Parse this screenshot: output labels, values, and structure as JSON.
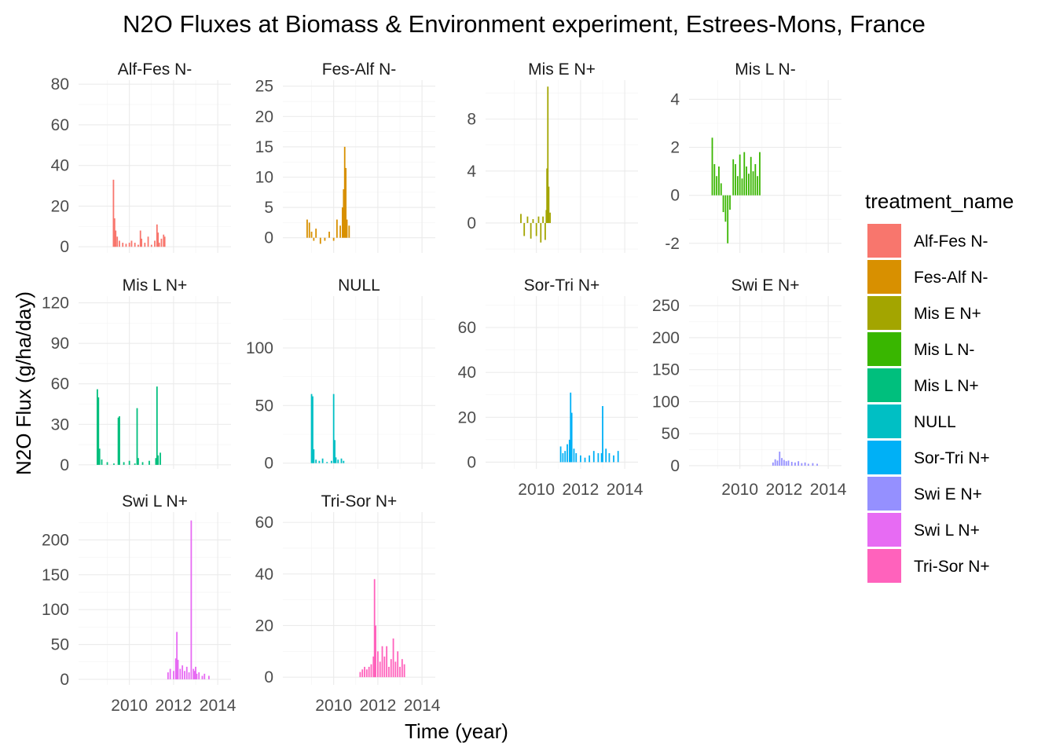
{
  "chart_data": {
    "type": "bar",
    "title": "N2O Fluxes at Biomass & Environment experiment, Estrees-Mons, France",
    "xlabel": "Time (year)",
    "ylabel": "N2O Flux (g/ha/day)",
    "legend_title": "treatment_name",
    "legend_position": "right",
    "xlim": [
      2007.7,
      2014.6
    ],
    "xticks": [
      2010,
      2012,
      2014
    ],
    "series": [
      {
        "name": "Alf-Fes N-",
        "color": "#F8766D",
        "ylim": [
          -3,
          82
        ],
        "yticks": [
          0,
          20,
          40,
          60,
          80
        ],
        "x": [
          2009.28,
          2009.33,
          2009.38,
          2009.45,
          2009.55,
          2009.7,
          2009.85,
          2010.0,
          2010.1,
          2010.25,
          2010.4,
          2010.5,
          2010.55,
          2010.7,
          2010.85,
          2011.0,
          2011.15,
          2011.25,
          2011.3,
          2011.35,
          2011.45,
          2011.55,
          2011.6
        ],
        "values": [
          33,
          14,
          8,
          5,
          3,
          2,
          1.5,
          2,
          3,
          2,
          1,
          8,
          4,
          2,
          5,
          1,
          3,
          11,
          7,
          2,
          4,
          6,
          5
        ]
      },
      {
        "name": "Fes-Alf N-",
        "color": "#D89000",
        "ylim": [
          -2.5,
          26
        ],
        "yticks": [
          0,
          5,
          10,
          15,
          20,
          25
        ],
        "x": [
          2008.8,
          2008.9,
          2009.0,
          2009.1,
          2009.2,
          2009.4,
          2009.6,
          2009.8,
          2010.0,
          2010.15,
          2010.3,
          2010.4,
          2010.45,
          2010.5,
          2010.55,
          2010.6,
          2010.7
        ],
        "values": [
          3,
          2.5,
          1,
          -0.5,
          1.5,
          -1,
          -0.5,
          1,
          -0.5,
          3,
          2,
          5,
          8,
          15,
          11.5,
          3,
          2
        ]
      },
      {
        "name": "Mis E N+",
        "color": "#A3A500",
        "ylim": [
          -2.3,
          11
        ],
        "yticks": [
          0,
          4,
          8
        ],
        "x": [
          2009.3,
          2009.45,
          2009.6,
          2009.75,
          2009.85,
          2010.0,
          2010.1,
          2010.2,
          2010.3,
          2010.4,
          2010.45,
          2010.48,
          2010.52,
          2010.56,
          2010.62
        ],
        "values": [
          0.7,
          -1,
          0.5,
          -1.2,
          0.3,
          -1,
          0.5,
          -1.5,
          0.5,
          -1.3,
          1,
          4.2,
          10.5,
          2.8,
          0.8
        ]
      },
      {
        "name": "Mis L N-",
        "color": "#39B600",
        "ylim": [
          -2.4,
          4.8
        ],
        "yticks": [
          -2,
          0,
          2,
          4
        ],
        "x": [
          2008.75,
          2008.85,
          2008.95,
          2009.05,
          2009.15,
          2009.25,
          2009.35,
          2009.45,
          2009.55,
          2009.7,
          2009.8,
          2009.9,
          2010.0,
          2010.1,
          2010.2,
          2010.3,
          2010.4,
          2010.5,
          2010.6,
          2010.7,
          2010.8,
          2010.9
        ],
        "values": [
          2.4,
          1.3,
          0.8,
          1.2,
          0.5,
          -0.7,
          -1.1,
          -2.0,
          -0.6,
          1.5,
          1.3,
          0.8,
          1.7,
          0.7,
          1.8,
          1.2,
          0.9,
          1.6,
          1.0,
          1.3,
          0.8,
          1.8
        ]
      },
      {
        "name": "Mis L N+",
        "color": "#00BF7D",
        "ylim": [
          -3,
          125
        ],
        "yticks": [
          0,
          30,
          60,
          90,
          120
        ],
        "x": [
          2008.55,
          2008.6,
          2008.65,
          2008.75,
          2009.0,
          2009.3,
          2009.5,
          2009.55,
          2009.75,
          2010.0,
          2010.25,
          2010.35,
          2010.4,
          2010.6,
          2010.9,
          2011.2,
          2011.25,
          2011.3,
          2011.4
        ],
        "values": [
          56,
          50,
          12,
          4,
          2,
          1,
          35,
          36,
          2,
          3,
          1,
          42,
          5,
          2,
          3,
          5,
          58,
          7,
          9
        ]
      },
      {
        "name": "NULL",
        "color": "#00BFC4",
        "ylim": [
          -5,
          145
        ],
        "yticks": [
          0,
          50,
          100
        ],
        "x": [
          2009.0,
          2009.05,
          2009.1,
          2009.2,
          2009.35,
          2009.5,
          2009.7,
          2009.9,
          2010.0,
          2010.05,
          2010.1,
          2010.2,
          2010.35,
          2010.45
        ],
        "values": [
          60,
          58,
          12,
          3,
          2,
          4,
          1,
          2,
          60,
          20,
          5,
          3,
          4,
          2
        ]
      },
      {
        "name": "Sor-Tri N+",
        "color": "#00B0F6",
        "ylim": [
          -3,
          74
        ],
        "yticks": [
          0,
          20,
          40,
          60
        ],
        "x": [
          2011.1,
          2011.2,
          2011.3,
          2011.4,
          2011.5,
          2011.55,
          2011.6,
          2011.7,
          2011.8,
          2012.0,
          2012.2,
          2012.4,
          2012.6,
          2012.8,
          2012.95,
          2013.0,
          2013.15,
          2013.3,
          2013.5,
          2013.7
        ],
        "values": [
          7,
          4,
          5,
          8,
          10,
          31,
          22,
          6,
          4,
          3,
          2,
          3,
          5,
          4,
          4,
          25,
          6,
          4,
          3,
          5
        ]
      },
      {
        "name": "Swi E N+",
        "color": "#9590FF",
        "ylim": [
          -5,
          265
        ],
        "yticks": [
          0,
          50,
          100,
          150,
          200,
          250
        ],
        "x": [
          2011.5,
          2011.6,
          2011.7,
          2011.8,
          2011.9,
          2012.0,
          2012.1,
          2012.2,
          2012.35,
          2012.5,
          2012.65,
          2012.8,
          2012.95,
          2013.1,
          2013.3,
          2013.5
        ],
        "values": [
          5,
          10,
          8,
          22,
          12,
          9,
          7,
          8,
          6,
          5,
          7,
          4,
          5,
          3,
          4,
          3
        ]
      },
      {
        "name": "Swi L N+",
        "color": "#E76BF3",
        "ylim": [
          -8,
          240
        ],
        "yticks": [
          0,
          50,
          100,
          150,
          200
        ],
        "x": [
          2011.75,
          2011.85,
          2012.0,
          2012.1,
          2012.15,
          2012.2,
          2012.3,
          2012.4,
          2012.5,
          2012.6,
          2012.7,
          2012.8,
          2012.9,
          2012.95,
          2013.0,
          2013.05,
          2013.15,
          2013.3,
          2013.4,
          2013.6
        ],
        "values": [
          10,
          15,
          12,
          30,
          68,
          28,
          15,
          20,
          12,
          18,
          10,
          228,
          15,
          12,
          18,
          8,
          10,
          5,
          8,
          5
        ]
      },
      {
        "name": "Tri-Sor N+",
        "color": "#FF62BC",
        "ylim": [
          -3,
          64
        ],
        "yticks": [
          0,
          20,
          40,
          60
        ],
        "x": [
          2011.2,
          2011.3,
          2011.4,
          2011.5,
          2011.6,
          2011.7,
          2011.8,
          2011.85,
          2011.9,
          2012.0,
          2012.1,
          2012.2,
          2012.3,
          2012.4,
          2012.5,
          2012.6,
          2012.7,
          2012.8,
          2012.9,
          2013.0,
          2013.1,
          2013.2
        ],
        "values": [
          2,
          3,
          4,
          3,
          4,
          5,
          8,
          38,
          20,
          10,
          6,
          12,
          8,
          12,
          4,
          7,
          15,
          6,
          10,
          4,
          7,
          5
        ]
      }
    ]
  }
}
